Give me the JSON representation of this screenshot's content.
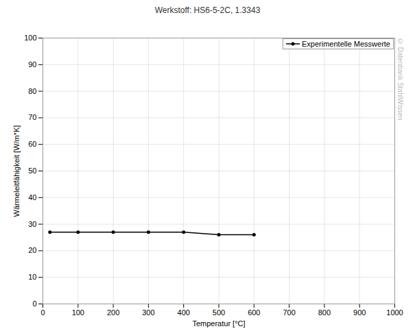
{
  "chart_data": {
    "type": "line",
    "title": "Werkstoff: HS6-5-2C, 1.3343",
    "x_label": "Temperatur [°C]",
    "y_label": "Wärmeleitfähigkeit [W/m*K]",
    "annotations": [
      "© Datenbank StahlWissen"
    ],
    "x": [
      20,
      100,
      200,
      300,
      400,
      500,
      600
    ],
    "series": [
      {
        "name": "Experimentelle Messwerte",
        "color": "#000000",
        "values": [
          27,
          27,
          27,
          27,
          27,
          26,
          26
        ]
      }
    ],
    "xlim": [
      0,
      1000
    ],
    "xticks": [
      0,
      100,
      200,
      300,
      400,
      500,
      600,
      700,
      800,
      900,
      1000
    ],
    "ylim": [
      0,
      100
    ],
    "yticks": [
      0,
      10,
      20,
      30,
      40,
      50,
      60,
      70,
      80,
      90,
      100
    ],
    "grid": true,
    "legend": "top-right",
    "marker": "circle",
    "line_style": "solid"
  }
}
